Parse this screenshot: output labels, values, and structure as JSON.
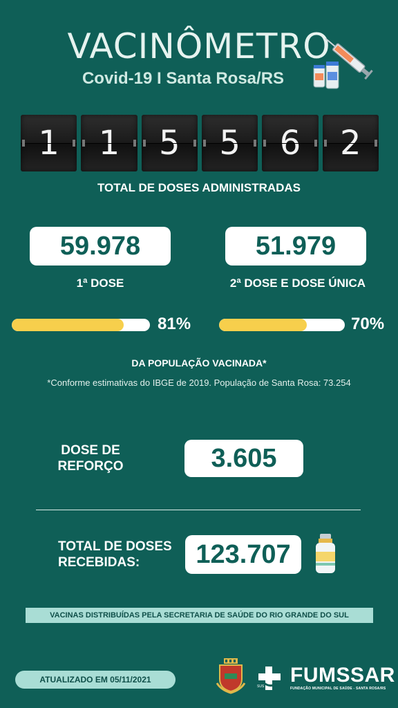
{
  "header": {
    "title": "VACINÔMETRO",
    "subtitle": "Covid-19 I Santa Rosa/RS",
    "art_icon": "syringe-and-vials-icon"
  },
  "counter": {
    "digits": [
      "1",
      "1",
      "5",
      "5",
      "6",
      "2"
    ],
    "label": "TOTAL DE DOSES ADMINISTRADAS"
  },
  "doses": {
    "first": {
      "value": "59.978",
      "label": "1ª DOSE",
      "percent_text": "81%",
      "percent": 81
    },
    "second": {
      "value": "51.979",
      "label": "2ª DOSE E DOSE ÚNICA",
      "percent_text": "70%",
      "percent": 70
    }
  },
  "population": {
    "label": "DA POPULAÇÃO VACINADA*",
    "note": "*Conforme estimativas do IBGE de 2019. População de Santa Rosa: 73.254"
  },
  "booster": {
    "label_line1": "DOSE DE",
    "label_line2": "REFORÇO",
    "value": "3.605"
  },
  "received": {
    "label_line1": "TOTAL DE DOSES",
    "label_line2": "RECEBIDAS:",
    "value": "123.707",
    "icon": "vaccine-vial-icon"
  },
  "banner": "VACINAS DISTRIBUÍDAS PELA SECRETARIA DE SAÚDE DO RIO GRANDE DO SUL",
  "footer": {
    "updated": "ATUALIZADO EM 05/11/2021",
    "org_name": "FUMSSAR",
    "org_sub": "FUNDAÇÃO MUNICIPAL DE SAÚDE - SANTA ROSA/RS",
    "sus": "SUS"
  },
  "colors": {
    "background": "#0f5f57",
    "accent": "#f7cf4c",
    "banner": "#a9ddd5"
  }
}
